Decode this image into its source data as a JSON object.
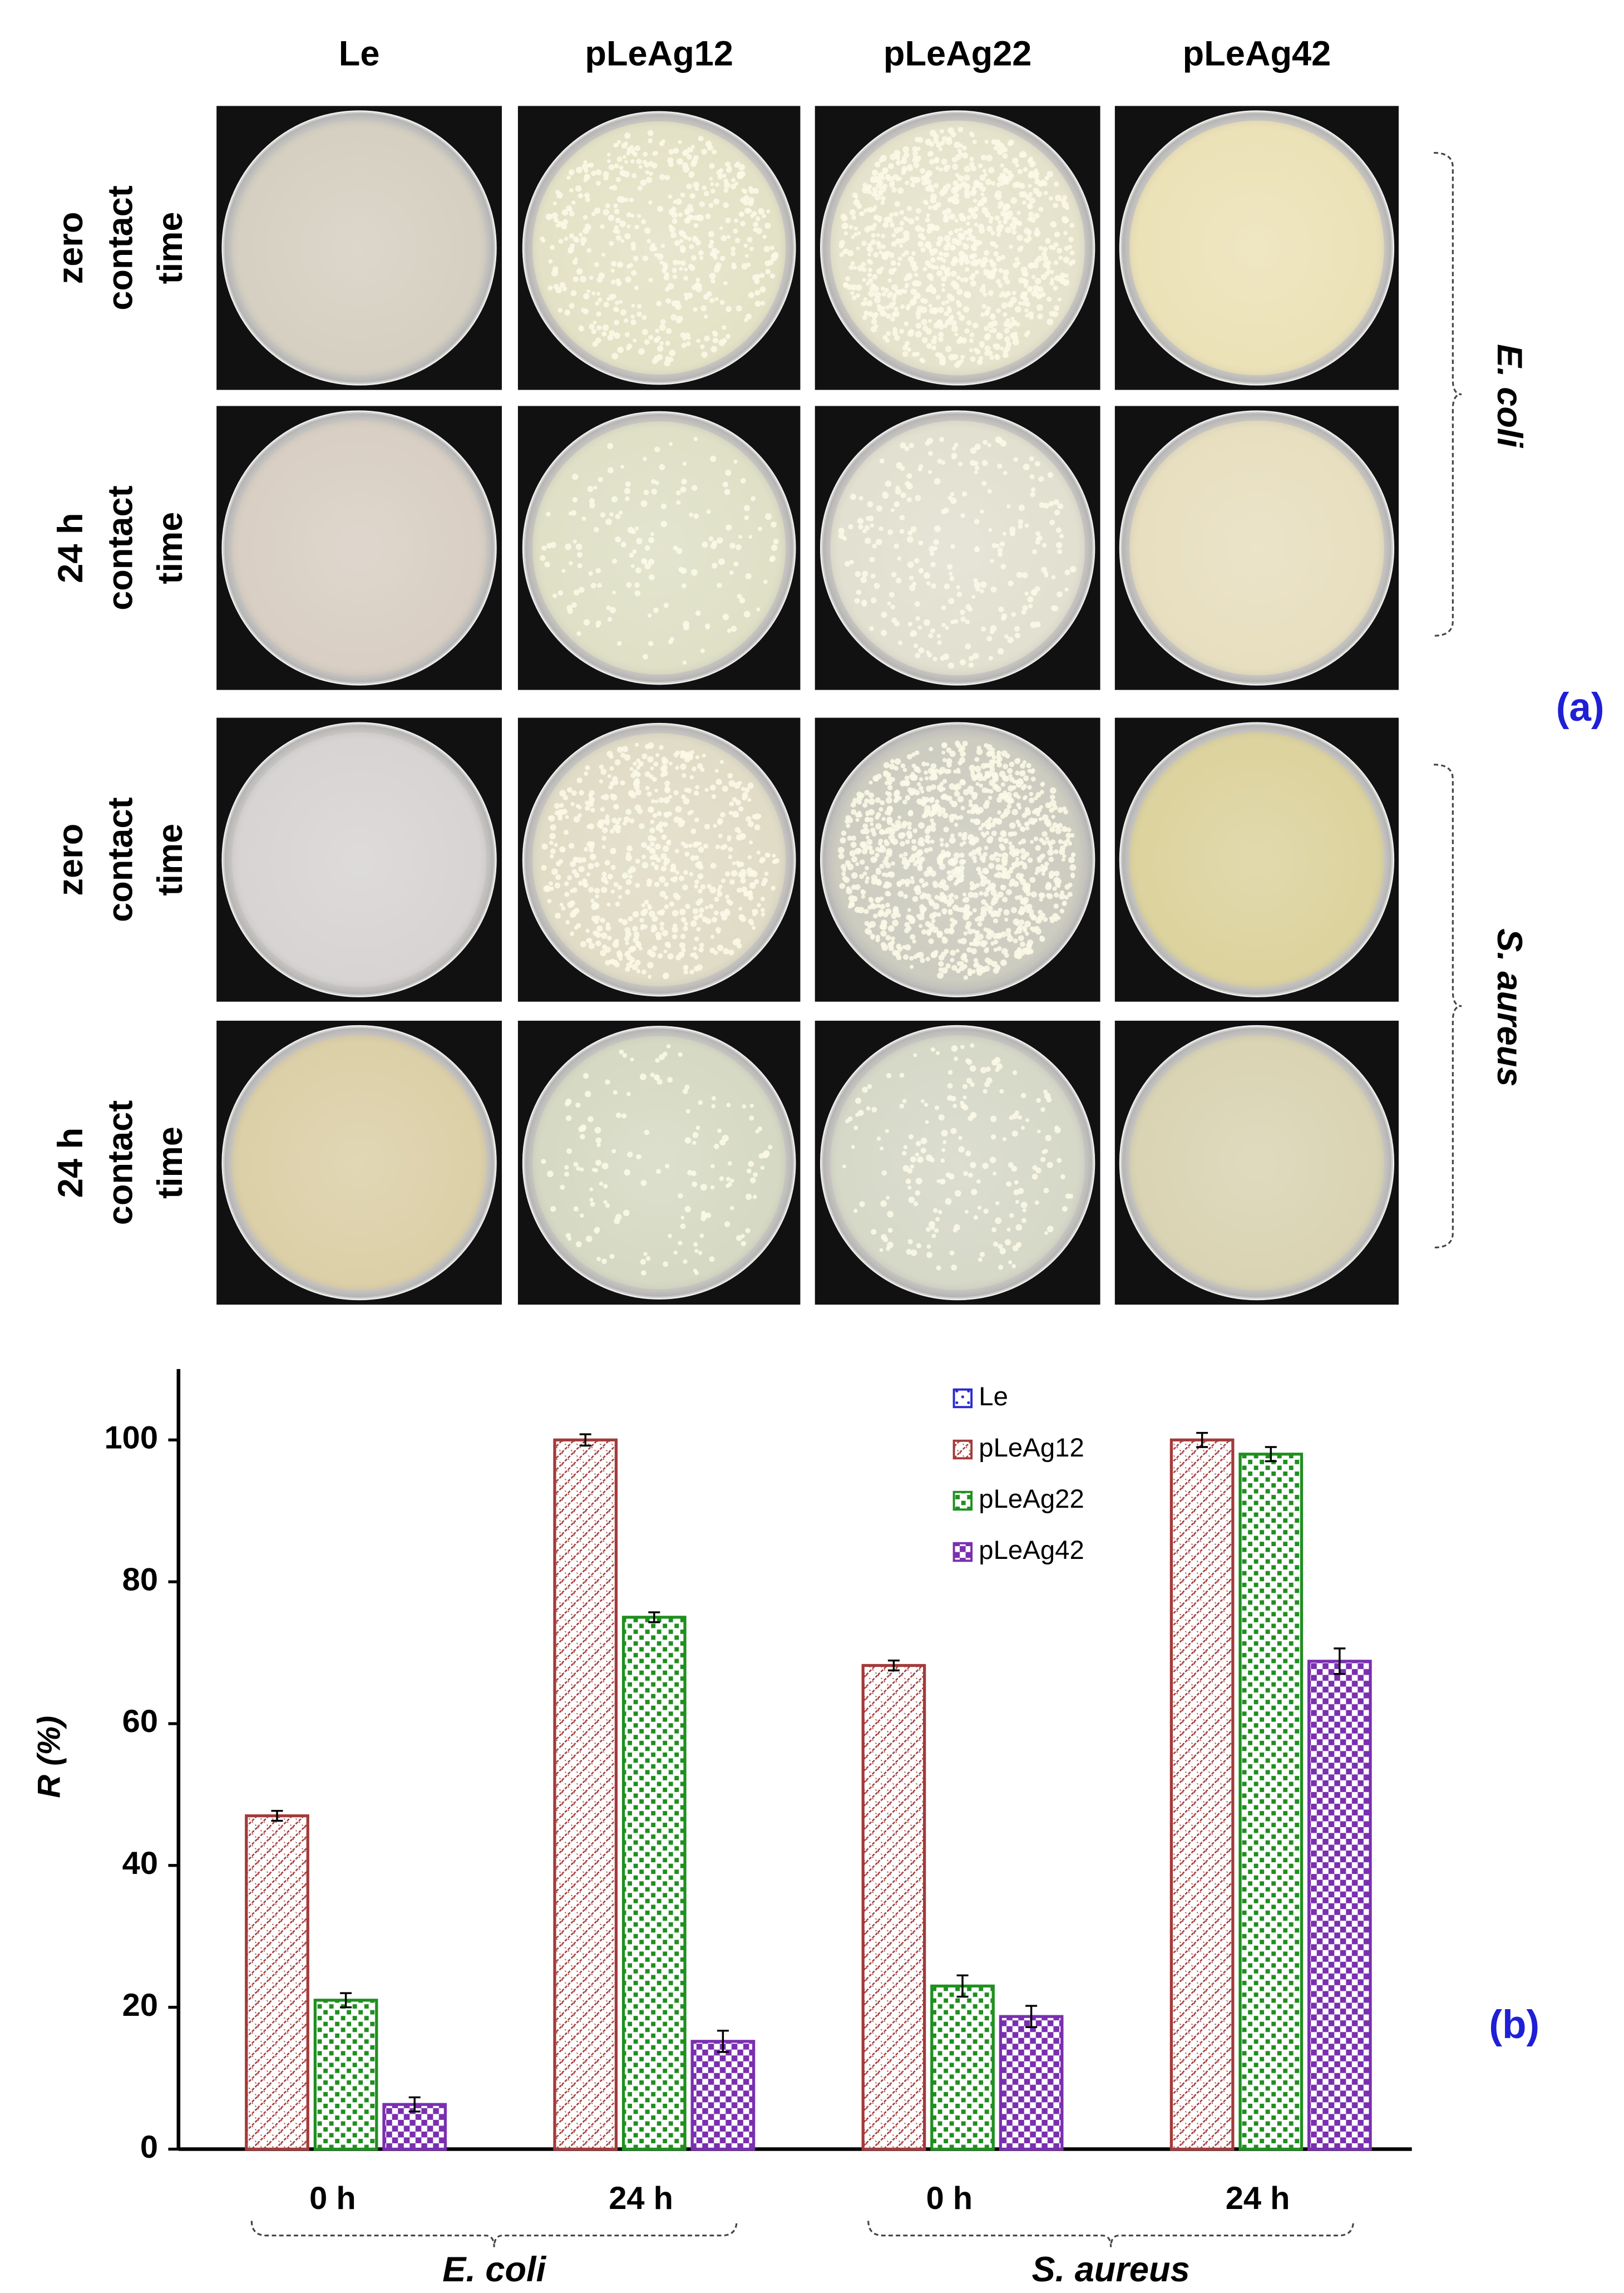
{
  "photo_panel": {
    "column_labels": [
      "Le",
      "pLeAg12",
      "pLeAg22",
      "pLeAg42"
    ],
    "row_labels": [
      [
        "zero",
        "contact",
        "time"
      ],
      [
        "24 h",
        "contact",
        "time"
      ],
      [
        "zero",
        "contact",
        "time"
      ],
      [
        "24 h",
        "contact",
        "time"
      ]
    ],
    "organisms": [
      "E. coli",
      "S. aureus"
    ],
    "panel_label": "(a)"
  },
  "chart_data": {
    "type": "bar",
    "ylabel": "R (%)",
    "panel_label": "(b)",
    "categories": [
      "0 h",
      "24 h",
      "0 h",
      "24 h"
    ],
    "groups": [
      "E. coli",
      "S. aureus"
    ],
    "series": [
      {
        "name": "Le",
        "color": "#2b2bd0",
        "values": [
          0,
          0,
          0,
          0
        ]
      },
      {
        "name": "pLeAg12",
        "color": "#a33a3a",
        "values": [
          47,
          100,
          68.2,
          100
        ],
        "errors": [
          0.7,
          0.8,
          0.7,
          1
        ]
      },
      {
        "name": "pLeAg22",
        "color": "#1f8f1f",
        "values": [
          21,
          75,
          23,
          98
        ],
        "errors": [
          1,
          0.7,
          1.5,
          1
        ]
      },
      {
        "name": "pLeAg42",
        "color": "#7a2fb0",
        "values": [
          6.3,
          15.2,
          18.7,
          68.8
        ],
        "errors": [
          1,
          1.5,
          1.5,
          1.8
        ]
      }
    ],
    "ylim": [
      0,
      110
    ],
    "yticks": [
      0,
      20,
      40,
      60,
      80,
      100
    ],
    "grid": false,
    "legend": "upper right"
  }
}
